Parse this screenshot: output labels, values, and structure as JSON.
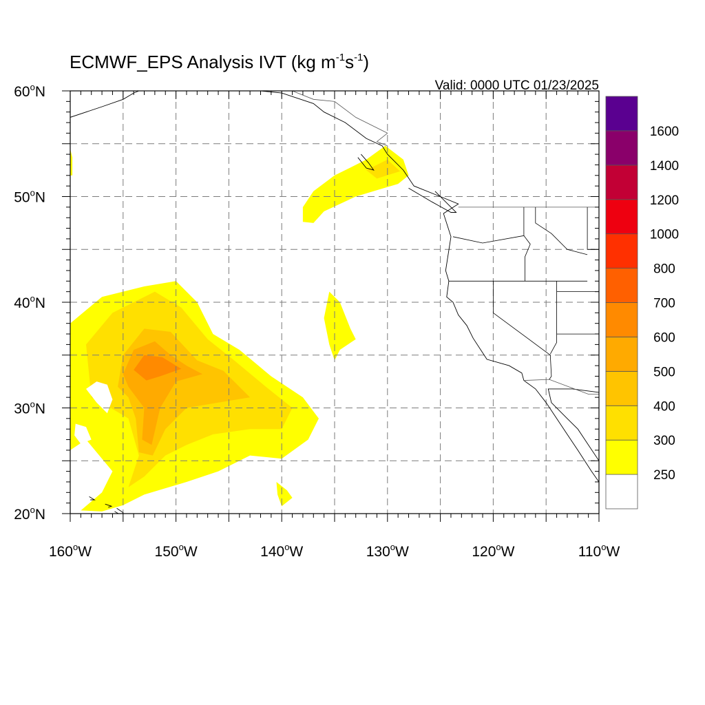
{
  "title": {
    "main": "ECMWF_EPS Analysis IVT (kg m",
    "exp1": "-1",
    "mid": "s",
    "exp2": "-1",
    "close": ")"
  },
  "valid": "Valid: 0000 UTC 01/23/2025",
  "lat_labels": [
    {
      "num": "60",
      "deg": "o",
      "hemi": "N",
      "lat": 60
    },
    {
      "num": "50",
      "deg": "o",
      "hemi": "N",
      "lat": 50
    },
    {
      "num": "40",
      "deg": "o",
      "hemi": "N",
      "lat": 40
    },
    {
      "num": "30",
      "deg": "o",
      "hemi": "N",
      "lat": 30
    },
    {
      "num": "20",
      "deg": "o",
      "hemi": "N",
      "lat": 20
    }
  ],
  "lon_labels": [
    {
      "num": "160",
      "deg": "o",
      "hemi": "W",
      "lon": -160
    },
    {
      "num": "150",
      "deg": "o",
      "hemi": "W",
      "lon": -150
    },
    {
      "num": "140",
      "deg": "o",
      "hemi": "W",
      "lon": -140
    },
    {
      "num": "130",
      "deg": "o",
      "hemi": "W",
      "lon": -130
    },
    {
      "num": "120",
      "deg": "o",
      "hemi": "W",
      "lon": -120
    },
    {
      "num": "110",
      "deg": "o",
      "hemi": "W",
      "lon": -110
    }
  ],
  "colorbar": {
    "colors": [
      "#ffffff",
      "#ffff00",
      "#ffe000",
      "#ffc400",
      "#ffaa00",
      "#ff8a00",
      "#ff6000",
      "#ff3000",
      "#ee0010",
      "#c20035",
      "#8a006a",
      "#5a0090"
    ],
    "labels": [
      "250",
      "300",
      "400",
      "500",
      "600",
      "700",
      "800",
      "1000",
      "1200",
      "1400",
      "1600"
    ]
  },
  "map": {
    "lon_range": [
      -160,
      -110
    ],
    "lat_range": [
      20,
      60
    ],
    "ivt_blobs": [
      {
        "name": "subtropical-plume",
        "level": 1,
        "points": [
          [
            -160,
            25
          ],
          [
            -160,
            38
          ],
          [
            -157,
            40.5
          ],
          [
            -153,
            41.5
          ],
          [
            -150,
            42
          ],
          [
            -148,
            40
          ],
          [
            -146.5,
            37
          ],
          [
            -144,
            35.5
          ],
          [
            -141,
            33
          ],
          [
            -138,
            31
          ],
          [
            -136.5,
            29
          ],
          [
            -137.5,
            27
          ],
          [
            -140,
            25.2
          ],
          [
            -143,
            25.5
          ],
          [
            -146,
            24
          ],
          [
            -149,
            23
          ],
          [
            -153,
            21.8
          ],
          [
            -155,
            20.8
          ],
          [
            -157,
            20.2
          ],
          [
            -159,
            20.3
          ],
          [
            -157,
            22
          ],
          [
            -156,
            24
          ],
          [
            -157,
            25.2
          ],
          [
            -158.5,
            27
          ],
          [
            -160,
            26
          ]
        ]
      },
      {
        "name": "subtropical-plume",
        "level": 2,
        "points": [
          [
            -158,
            31
          ],
          [
            -158.5,
            36
          ],
          [
            -156,
            39
          ],
          [
            -152,
            41
          ],
          [
            -149.5,
            39.5
          ],
          [
            -147,
            36.5
          ],
          [
            -144.5,
            34.5
          ],
          [
            -141.5,
            32
          ],
          [
            -139,
            30
          ],
          [
            -140,
            28
          ],
          [
            -143,
            28
          ],
          [
            -146.5,
            27.5
          ],
          [
            -149,
            26.5
          ],
          [
            -151,
            25.5
          ],
          [
            -153,
            23.5
          ],
          [
            -154.5,
            22.5
          ],
          [
            -153.5,
            25.5
          ],
          [
            -154.5,
            29
          ],
          [
            -156.5,
            30.2
          ]
        ]
      },
      {
        "name": "subtropical-plume",
        "level": 3,
        "points": [
          [
            -155.5,
            32
          ],
          [
            -155,
            35
          ],
          [
            -153,
            37.5
          ],
          [
            -150.5,
            37.2
          ],
          [
            -148,
            34.5
          ],
          [
            -145.5,
            33.5
          ],
          [
            -143,
            31
          ],
          [
            -146,
            30.5
          ],
          [
            -149,
            30
          ],
          [
            -151,
            28
          ],
          [
            -152.2,
            25.5
          ],
          [
            -153.5,
            25.8
          ],
          [
            -153.8,
            29
          ],
          [
            -154.5,
            31
          ]
        ]
      },
      {
        "name": "subtropical-plume",
        "level": 4,
        "points": [
          [
            -155,
            33.2
          ],
          [
            -154,
            35.5
          ],
          [
            -152,
            36.3
          ],
          [
            -150.5,
            35
          ],
          [
            -149,
            34
          ],
          [
            -147.5,
            33.2
          ],
          [
            -150,
            32.5
          ],
          [
            -151.5,
            30
          ],
          [
            -152.3,
            26.5
          ],
          [
            -153.2,
            27
          ],
          [
            -153,
            30
          ],
          [
            -154.5,
            32
          ]
        ]
      },
      {
        "name": "subtropical-plume",
        "level": 5,
        "points": [
          [
            -154,
            33.6
          ],
          [
            -153,
            35
          ],
          [
            -151.3,
            34.8
          ],
          [
            -149.5,
            33.7
          ],
          [
            -151.5,
            33
          ],
          [
            -152.8,
            32.6
          ]
        ]
      },
      {
        "name": "canada-plume",
        "level": 1,
        "points": [
          [
            -138,
            49
          ],
          [
            -137,
            50.5
          ],
          [
            -135,
            52
          ],
          [
            -132,
            53.5
          ],
          [
            -130.2,
            54.8
          ],
          [
            -128.5,
            53.5
          ],
          [
            -128,
            52
          ],
          [
            -129,
            51.2
          ],
          [
            -131,
            50.6
          ],
          [
            -133,
            50
          ],
          [
            -136,
            48.6
          ],
          [
            -137,
            47.5
          ],
          [
            -138,
            47.6
          ]
        ]
      },
      {
        "name": "canada-plume",
        "level": 2,
        "points": [
          [
            -132,
            52.5
          ],
          [
            -130,
            53.5
          ],
          [
            -128.8,
            52.4
          ],
          [
            -131,
            51.7
          ]
        ]
      },
      {
        "name": "central-blob",
        "level": 1,
        "points": [
          [
            -135.5,
            41
          ],
          [
            -134.5,
            40
          ],
          [
            -133.5,
            37.5
          ],
          [
            -133,
            36.5
          ],
          [
            -134.5,
            35.5
          ],
          [
            -135,
            34.5
          ],
          [
            -135.5,
            36
          ],
          [
            -136,
            38.5
          ]
        ]
      },
      {
        "name": "small-blob",
        "level": 1,
        "points": [
          [
            -140.5,
            23
          ],
          [
            -139.5,
            22.2
          ],
          [
            -139,
            21.5
          ],
          [
            -140,
            20.7
          ],
          [
            -140.4,
            21.8
          ]
        ]
      },
      {
        "name": "edge-sliver",
        "level": 1,
        "points": [
          [
            -160,
            54.5
          ],
          [
            -159.8,
            53.7
          ],
          [
            -159.8,
            52
          ],
          [
            -160,
            52
          ]
        ]
      }
    ],
    "holes": [
      [
        [
          -157.5,
          32.5
        ],
        [
          -156.5,
          32.2
        ],
        [
          -156,
          30.8
        ],
        [
          -156.5,
          29.5
        ],
        [
          -157.5,
          30.5
        ],
        [
          -158.5,
          31.8
        ]
      ],
      [
        [
          -159.5,
          28.5
        ],
        [
          -158.5,
          28.2
        ],
        [
          -158,
          27
        ],
        [
          -159,
          26.6
        ],
        [
          -159.6,
          27.4
        ]
      ]
    ],
    "coastline": [
      [
        [
          -110,
          23
        ],
        [
          -110.7,
          24
        ],
        [
          -112,
          26
        ],
        [
          -113,
          27.5
        ],
        [
          -114,
          29
        ],
        [
          -115,
          30.5
        ],
        [
          -116,
          31.8
        ],
        [
          -117.1,
          32.6
        ],
        [
          -117.3,
          33.3
        ],
        [
          -118.5,
          34
        ],
        [
          -120.6,
          34.6
        ],
        [
          -121.9,
          36.6
        ],
        [
          -122.5,
          37.8
        ],
        [
          -123.3,
          38.8
        ],
        [
          -123.8,
          40
        ],
        [
          -124.4,
          40.5
        ],
        [
          -124.2,
          42
        ],
        [
          -124.5,
          43
        ],
        [
          -124,
          46.2
        ],
        [
          -124.7,
          48.4
        ],
        [
          -123.3,
          49.3
        ],
        [
          -125,
          50
        ],
        [
          -127.5,
          51
        ],
        [
          -128.5,
          52.5
        ],
        [
          -130,
          54
        ],
        [
          -130.5,
          54.8
        ],
        [
          -132,
          55.5
        ],
        [
          -134,
          57
        ],
        [
          -136,
          58
        ],
        [
          -137,
          58.8
        ],
        [
          -140,
          59.8
        ],
        [
          -142,
          60
        ]
      ],
      [
        [
          -109.5,
          31.4
        ],
        [
          -112.5,
          31.8
        ],
        [
          -114.8,
          31.8
        ],
        [
          -114.5,
          30.5
        ],
        [
          -113,
          29
        ],
        [
          -112,
          28
        ],
        [
          -111,
          26.5
        ],
        [
          -110,
          25
        ],
        [
          -109.5,
          23.5
        ]
      ],
      [
        [
          -160,
          57.5
        ],
        [
          -157,
          58.5
        ],
        [
          -155,
          59.2
        ],
        [
          -154,
          59.8
        ],
        [
          -153.5,
          60
        ]
      ],
      [
        [
          -155.8,
          20.2
        ],
        [
          -155.1,
          19.8
        ],
        [
          -155,
          20.1
        ],
        [
          -155.6,
          20.5
        ]
      ],
      [
        [
          -156.7,
          20.9
        ],
        [
          -156.1,
          20.7
        ],
        [
          -156.4,
          20.6
        ]
      ],
      [
        [
          -158.2,
          21.6
        ],
        [
          -157.7,
          21.3
        ],
        [
          -158.1,
          21.3
        ]
      ],
      [
        [
          -125.5,
          50.5
        ],
        [
          -123.5,
          48.5
        ],
        [
          -124,
          48.5
        ],
        [
          -125.8,
          49.5
        ],
        [
          -128,
          50.8
        ]
      ],
      [
        [
          -132.5,
          54
        ],
        [
          -131.8,
          53.2
        ],
        [
          -131.3,
          52.5
        ],
        [
          -132,
          52.7
        ],
        [
          -132.8,
          53.7
        ]
      ]
    ],
    "borders": [
      [
        [
          -123.3,
          49
        ],
        [
          -95,
          49
        ]
      ],
      [
        [
          -117.1,
          32.6
        ],
        [
          -114.7,
          32.7
        ],
        [
          -111,
          31.3
        ],
        [
          -108,
          31.3
        ]
      ],
      [
        [
          -141,
          60
        ],
        [
          -141,
          59.8
        ]
      ],
      [
        [
          -130,
          56
        ],
        [
          -131,
          55.2
        ],
        [
          -130,
          54.8
        ]
      ],
      [
        [
          -130,
          56
        ],
        [
          -133,
          57.5
        ],
        [
          -135,
          59
        ],
        [
          -137,
          59.2
        ],
        [
          -139,
          60
        ]
      ]
    ],
    "states": [
      [
        [
          -124.2,
          42
        ],
        [
          -111.1,
          42
        ]
      ],
      [
        [
          -117.1,
          49
        ],
        [
          -117.1,
          46.3
        ]
      ],
      [
        [
          -117.1,
          46.3
        ],
        [
          -121,
          45.6
        ],
        [
          -123.8,
          46.2
        ]
      ],
      [
        [
          -117.1,
          46.3
        ],
        [
          -116.5,
          45.5
        ],
        [
          -117,
          44.3
        ],
        [
          -117,
          42
        ]
      ],
      [
        [
          -120,
          42
        ],
        [
          -120,
          39
        ],
        [
          -114.6,
          35
        ],
        [
          -114.5,
          33
        ],
        [
          -114.7,
          32.7
        ]
      ],
      [
        [
          -114,
          42
        ],
        [
          -114,
          36.2
        ],
        [
          -114.6,
          35.1
        ]
      ],
      [
        [
          -111.1,
          49
        ],
        [
          -111.1,
          45
        ],
        [
          -110,
          45
        ]
      ],
      [
        [
          -114,
          41
        ],
        [
          -110,
          41
        ]
      ],
      [
        [
          -114,
          37
        ],
        [
          -110,
          37
        ]
      ],
      [
        [
          -116,
          49
        ],
        [
          -116,
          47.5
        ],
        [
          -114.5,
          46.5
        ],
        [
          -113,
          45
        ],
        [
          -111.1,
          44.5
        ]
      ]
    ]
  }
}
